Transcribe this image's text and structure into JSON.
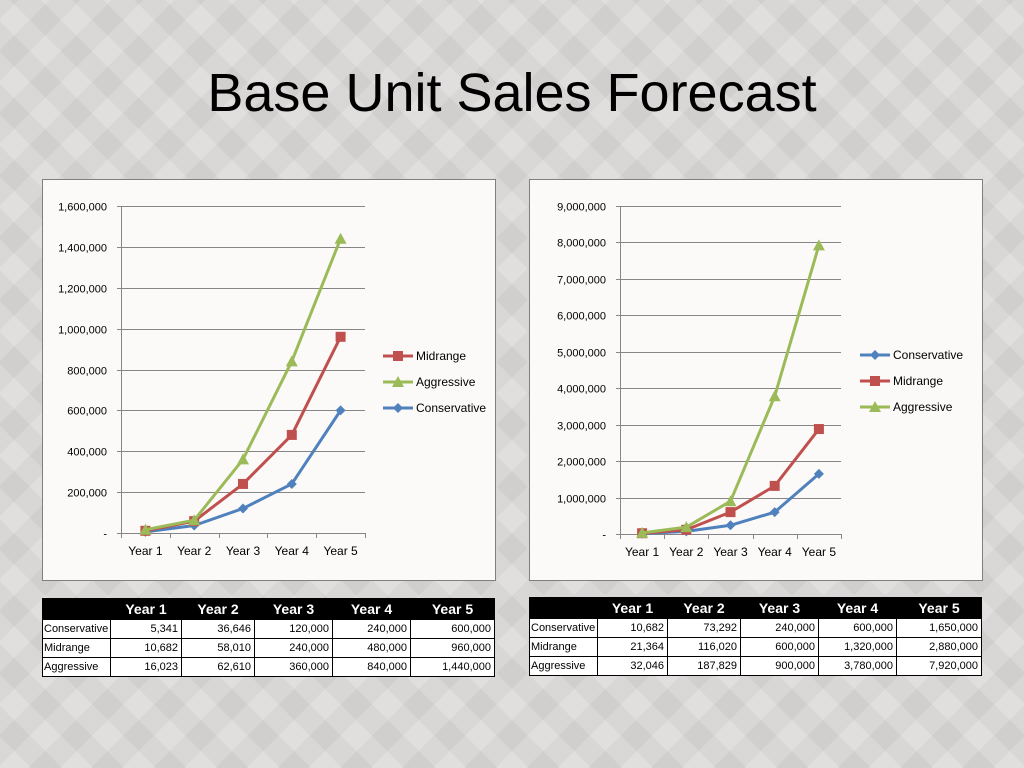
{
  "slide": {
    "title": "Base Unit Sales Forecast"
  },
  "colors": {
    "Conservative": "#4f81bd",
    "Midrange": "#c0504d",
    "Aggressive": "#9bbb59",
    "grid": "#868686",
    "text": "#000000"
  },
  "chart_data": [
    {
      "type": "line",
      "title": "",
      "xlabel": "",
      "ylabel": "",
      "categories": [
        "Year 1",
        "Year 2",
        "Year 3",
        "Year 4",
        "Year 5"
      ],
      "ylim": [
        0,
        1600000
      ],
      "y_ticks": [
        0,
        200000,
        400000,
        600000,
        800000,
        1000000,
        1200000,
        1400000,
        1600000
      ],
      "y_tick_labels": [
        "-",
        "200,000",
        "400,000",
        "600,000",
        "800,000",
        "1,000,000",
        "1,200,000",
        "1,400,000",
        "1,600,000"
      ],
      "grid": true,
      "legend_position": "right",
      "legend_order": [
        "Midrange",
        "Aggressive",
        "Conservative"
      ],
      "series": [
        {
          "name": "Conservative",
          "marker": "diamond",
          "values": [
            5341,
            36646,
            120000,
            240000,
            600000
          ]
        },
        {
          "name": "Midrange",
          "marker": "square",
          "values": [
            10682,
            58010,
            240000,
            480000,
            960000
          ]
        },
        {
          "name": "Aggressive",
          "marker": "triangle",
          "values": [
            16023,
            62610,
            360000,
            840000,
            1440000
          ]
        }
      ]
    },
    {
      "type": "line",
      "title": "",
      "xlabel": "",
      "ylabel": "",
      "categories": [
        "Year 1",
        "Year 2",
        "Year 3",
        "Year 4",
        "Year 5"
      ],
      "ylim": [
        0,
        9000000
      ],
      "y_ticks": [
        0,
        1000000,
        2000000,
        3000000,
        4000000,
        5000000,
        6000000,
        7000000,
        8000000,
        9000000
      ],
      "y_tick_labels": [
        "-",
        "1,000,000",
        "2,000,000",
        "3,000,000",
        "4,000,000",
        "5,000,000",
        "6,000,000",
        "7,000,000",
        "8,000,000",
        "9,000,000"
      ],
      "grid": true,
      "legend_position": "right",
      "legend_order": [
        "Conservative",
        "Midrange",
        "Aggressive"
      ],
      "series": [
        {
          "name": "Conservative",
          "marker": "diamond",
          "values": [
            10682,
            73292,
            240000,
            600000,
            1650000
          ]
        },
        {
          "name": "Midrange",
          "marker": "square",
          "values": [
            21364,
            116020,
            600000,
            1320000,
            2880000
          ]
        },
        {
          "name": "Aggressive",
          "marker": "triangle",
          "values": [
            32046,
            187829,
            900000,
            3780000,
            7920000
          ]
        }
      ]
    }
  ],
  "tables": [
    {
      "headers": [
        "",
        "Year 1",
        "Year 2",
        "Year 3",
        "Year 4",
        "Year 5"
      ],
      "rows": [
        [
          "Conservative",
          "5,341",
          "36,646",
          "120,000",
          "240,000",
          "600,000"
        ],
        [
          "Midrange",
          "10,682",
          "58,010",
          "240,000",
          "480,000",
          "960,000"
        ],
        [
          "Aggressive",
          "16,023",
          "62,610",
          "360,000",
          "840,000",
          "1,440,000"
        ]
      ]
    },
    {
      "headers": [
        "",
        "Year 1",
        "Year 2",
        "Year 3",
        "Year 4",
        "Year 5"
      ],
      "rows": [
        [
          "Conservative",
          "10,682",
          "73,292",
          "240,000",
          "600,000",
          "1,650,000"
        ],
        [
          "Midrange",
          "21,364",
          "116,020",
          "600,000",
          "1,320,000",
          "2,880,000"
        ],
        [
          "Aggressive",
          "32,046",
          "187,829",
          "900,000",
          "3,780,000",
          "7,920,000"
        ]
      ]
    }
  ]
}
